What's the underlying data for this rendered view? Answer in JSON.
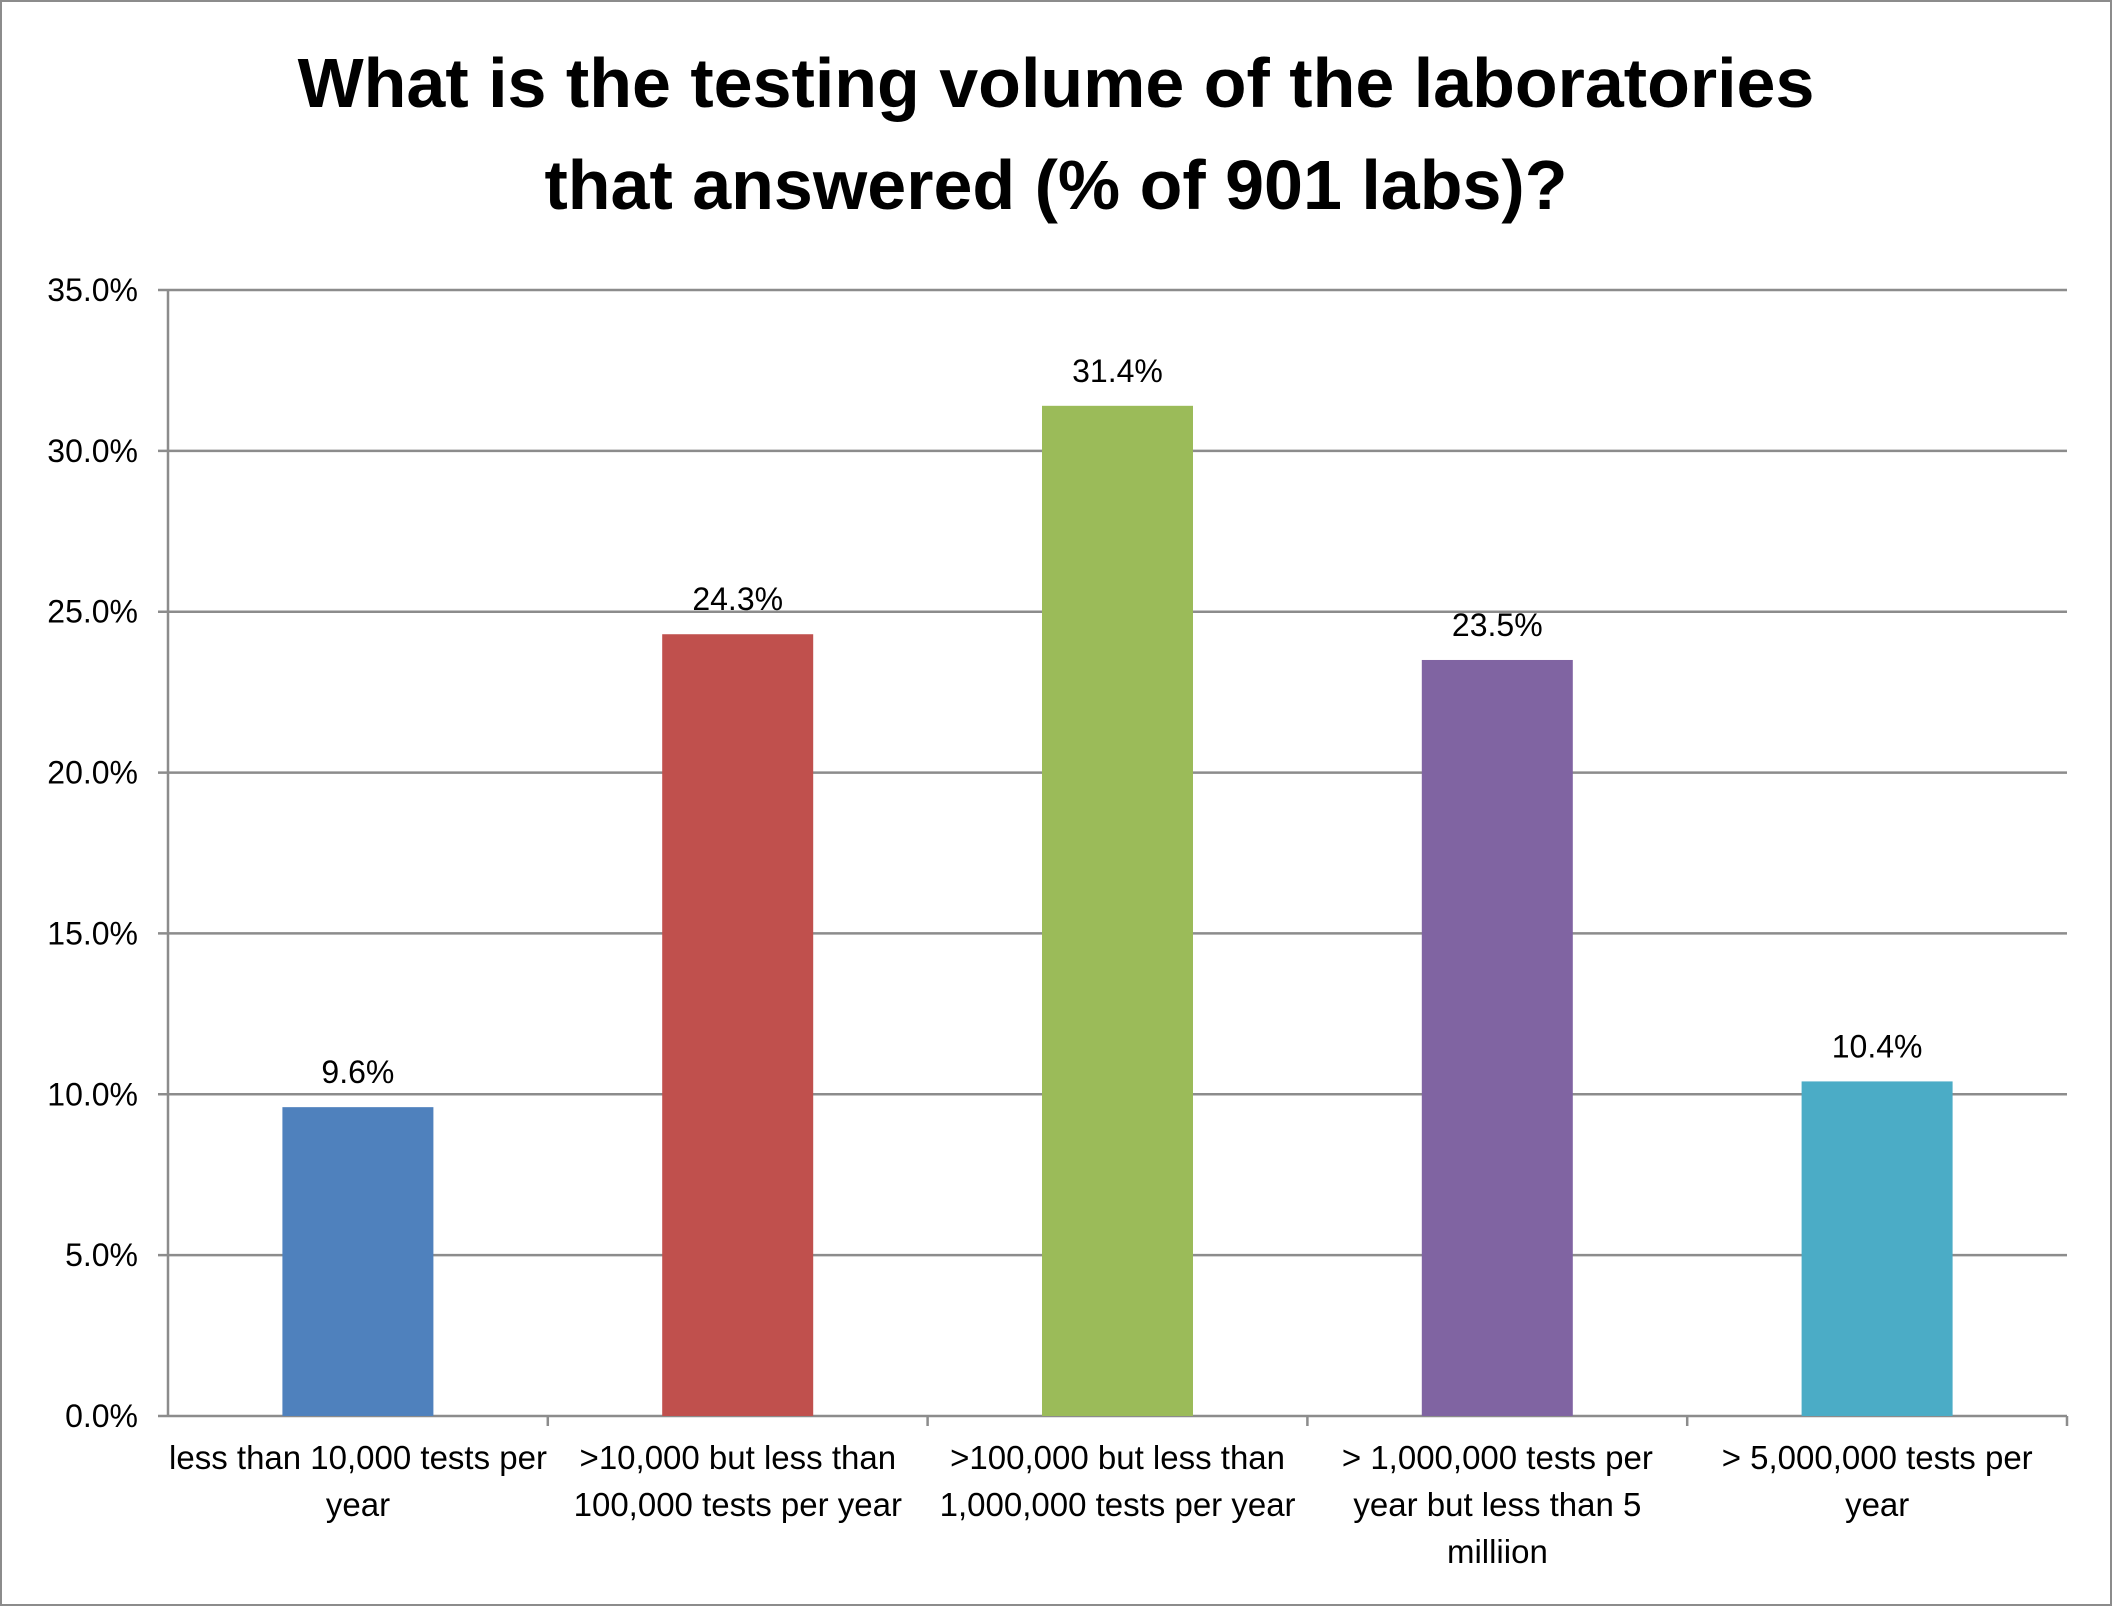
{
  "chart_data": {
    "type": "bar",
    "title": "What is the testing volume of the laboratories that answered (% of  901 labs)?",
    "title_lines": [
      "What is the testing volume of the laboratories",
      "that answered (% of  901 labs)?"
    ],
    "categories": [
      "less than 10,000 tests per year",
      ">10,000 but less than 100,000 tests per year",
      ">100,000 but less than 1,000,000 tests per year",
      "> 1,000,000 tests per year but less than 5 milliion",
      "> 5,000,000 tests per year"
    ],
    "values": [
      9.6,
      24.3,
      31.4,
      23.5,
      10.4
    ],
    "data_labels": [
      "9.6%",
      "24.3%",
      "31.4%",
      "23.5%",
      "10.4%"
    ],
    "colors": [
      "#4f81bd",
      "#c0504d",
      "#9bbb59",
      "#8064a2",
      "#4bacc6"
    ],
    "ylim": [
      0,
      35
    ],
    "yticks": [
      "0.0%",
      "5.0%",
      "10.0%",
      "15.0%",
      "20.0%",
      "25.0%",
      "30.0%",
      "35.0%"
    ],
    "grid": true,
    "legend": "none",
    "xlabel": "",
    "ylabel": ""
  }
}
